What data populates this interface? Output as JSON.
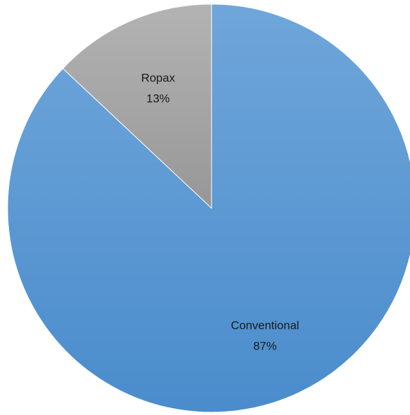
{
  "chart_data": {
    "type": "pie",
    "title": "",
    "start_angle_deg": 0,
    "direction": "clockwise",
    "slices": [
      {
        "label": "Conventional",
        "value": 87,
        "percent_label": "87%",
        "color": "#5b9bd5"
      },
      {
        "label": "Ropax",
        "value": 13,
        "percent_label": "13%",
        "color": "#a5a5a5"
      }
    ],
    "legend": "none",
    "stroke_color": "#ffffff"
  }
}
